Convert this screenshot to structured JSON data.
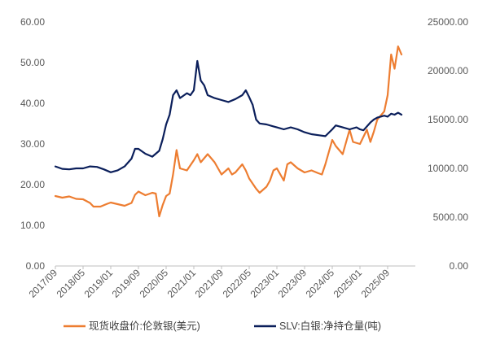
{
  "chart_data": {
    "type": "line",
    "title": "",
    "x_tick_labels": [
      "2017/09",
      "2018/05",
      "2019/01",
      "2019/09",
      "2020/05",
      "2021/01",
      "2021/09",
      "2022/05",
      "2023/01",
      "2023/09",
      "2024/05",
      "2025/01",
      "2025/09"
    ],
    "y_left": {
      "min": 0,
      "max": 60,
      "ticks": [
        "0.00",
        "10.00",
        "20.00",
        "30.00",
        "40.00",
        "50.00",
        "60.00"
      ]
    },
    "y_right": {
      "min": 0,
      "max": 25000,
      "ticks": [
        "0.00",
        "5000.00",
        "10000.00",
        "15000.00",
        "20000.00",
        "25000.00"
      ]
    },
    "grid": false,
    "legend_position": "bottom",
    "series": [
      {
        "name": "现货收盘价:伦敦银(美元)",
        "axis": "left",
        "color": "#ED7D31",
        "points": [
          [
            "2017/09",
            17.2
          ],
          [
            "2017/11",
            16.8
          ],
          [
            "2018/01",
            17.1
          ],
          [
            "2018/03",
            16.5
          ],
          [
            "2018/05",
            16.4
          ],
          [
            "2018/07",
            15.5
          ],
          [
            "2018/08",
            14.6
          ],
          [
            "2018/10",
            14.6
          ],
          [
            "2018/12",
            15.3
          ],
          [
            "2019/01",
            15.6
          ],
          [
            "2019/03",
            15.2
          ],
          [
            "2019/05",
            14.8
          ],
          [
            "2019/07",
            15.5
          ],
          [
            "2019/08",
            17.5
          ],
          [
            "2019/09",
            18.3
          ],
          [
            "2019/11",
            17.4
          ],
          [
            "2020/01",
            18.0
          ],
          [
            "2020/02",
            17.8
          ],
          [
            "2020/03",
            12.2
          ],
          [
            "2020/04",
            15.0
          ],
          [
            "2020/05",
            17.2
          ],
          [
            "2020/06",
            17.8
          ],
          [
            "2020/07",
            22.5
          ],
          [
            "2020/08",
            28.5
          ],
          [
            "2020/09",
            24.0
          ],
          [
            "2020/11",
            23.5
          ],
          [
            "2021/01",
            26.0
          ],
          [
            "2021/02",
            27.5
          ],
          [
            "2021/03",
            25.5
          ],
          [
            "2021/05",
            27.5
          ],
          [
            "2021/06",
            26.5
          ],
          [
            "2021/07",
            25.5
          ],
          [
            "2021/09",
            22.5
          ],
          [
            "2021/11",
            24.0
          ],
          [
            "2021/12",
            22.5
          ],
          [
            "2022/01",
            23.0
          ],
          [
            "2022/03",
            25.0
          ],
          [
            "2022/04",
            23.5
          ],
          [
            "2022/05",
            21.5
          ],
          [
            "2022/07",
            19.0
          ],
          [
            "2022/08",
            18.0
          ],
          [
            "2022/10",
            19.5
          ],
          [
            "2022/11",
            21.0
          ],
          [
            "2022/12",
            23.5
          ],
          [
            "2023/01",
            24.0
          ],
          [
            "2023/03",
            21.0
          ],
          [
            "2023/04",
            25.0
          ],
          [
            "2023/05",
            25.5
          ],
          [
            "2023/07",
            24.0
          ],
          [
            "2023/09",
            23.0
          ],
          [
            "2023/11",
            23.5
          ],
          [
            "2024/01",
            22.8
          ],
          [
            "2024/02",
            22.5
          ],
          [
            "2024/03",
            25.0
          ],
          [
            "2024/05",
            31.0
          ],
          [
            "2024/06",
            29.5
          ],
          [
            "2024/08",
            27.5
          ],
          [
            "2024/10",
            33.5
          ],
          [
            "2024/11",
            30.5
          ],
          [
            "2025/01",
            30.0
          ],
          [
            "2025/03",
            33.5
          ],
          [
            "2025/04",
            30.5
          ],
          [
            "2025/05",
            33.0
          ],
          [
            "2025/06",
            36.0
          ],
          [
            "2025/08",
            38.0
          ],
          [
            "2025/09",
            42.0
          ],
          [
            "2025/10",
            52.0
          ],
          [
            "2025/11",
            48.5
          ],
          [
            "2025/12",
            54.0
          ],
          [
            "2026/01",
            52.0
          ]
        ]
      },
      {
        "name": "SLV:白银:净持仓量(吨)",
        "axis": "right",
        "color": "#0B1F5B",
        "points": [
          [
            "2017/09",
            10200
          ],
          [
            "2017/11",
            9950
          ],
          [
            "2018/01",
            9900
          ],
          [
            "2018/03",
            10000
          ],
          [
            "2018/05",
            10000
          ],
          [
            "2018/07",
            10200
          ],
          [
            "2018/09",
            10150
          ],
          [
            "2018/11",
            9900
          ],
          [
            "2019/01",
            9600
          ],
          [
            "2019/03",
            9800
          ],
          [
            "2019/05",
            10200
          ],
          [
            "2019/07",
            11000
          ],
          [
            "2019/08",
            12000
          ],
          [
            "2019/09",
            12000
          ],
          [
            "2019/11",
            11500
          ],
          [
            "2020/01",
            11200
          ],
          [
            "2020/03",
            11800
          ],
          [
            "2020/04",
            13000
          ],
          [
            "2020/05",
            14500
          ],
          [
            "2020/06",
            15500
          ],
          [
            "2020/07",
            17500
          ],
          [
            "2020/08",
            18000
          ],
          [
            "2020/09",
            17200
          ],
          [
            "2020/11",
            17700
          ],
          [
            "2020/12",
            17500
          ],
          [
            "2021/01",
            18000
          ],
          [
            "2021/02",
            21000
          ],
          [
            "2021/03",
            19000
          ],
          [
            "2021/04",
            18500
          ],
          [
            "2021/05",
            17500
          ],
          [
            "2021/07",
            17200
          ],
          [
            "2021/09",
            17000
          ],
          [
            "2021/11",
            16800
          ],
          [
            "2022/01",
            17100
          ],
          [
            "2022/03",
            17500
          ],
          [
            "2022/04",
            18000
          ],
          [
            "2022/05",
            17300
          ],
          [
            "2022/06",
            16500
          ],
          [
            "2022/07",
            15000
          ],
          [
            "2022/08",
            14600
          ],
          [
            "2022/10",
            14500
          ],
          [
            "2022/12",
            14300
          ],
          [
            "2023/01",
            14200
          ],
          [
            "2023/03",
            14000
          ],
          [
            "2023/05",
            14200
          ],
          [
            "2023/07",
            14000
          ],
          [
            "2023/09",
            13700
          ],
          [
            "2023/11",
            13500
          ],
          [
            "2024/01",
            13400
          ],
          [
            "2024/03",
            13300
          ],
          [
            "2024/05",
            14000
          ],
          [
            "2024/06",
            14400
          ],
          [
            "2024/08",
            14200
          ],
          [
            "2024/10",
            14000
          ],
          [
            "2024/12",
            14200
          ],
          [
            "2025/01",
            14000
          ],
          [
            "2025/02",
            13900
          ],
          [
            "2025/04",
            14700
          ],
          [
            "2025/05",
            15000
          ],
          [
            "2025/06",
            15200
          ],
          [
            "2025/08",
            15400
          ],
          [
            "2025/09",
            15300
          ],
          [
            "2025/10",
            15600
          ],
          [
            "2025/11",
            15500
          ],
          [
            "2025/12",
            15700
          ],
          [
            "2026/01",
            15500
          ]
        ]
      }
    ]
  }
}
